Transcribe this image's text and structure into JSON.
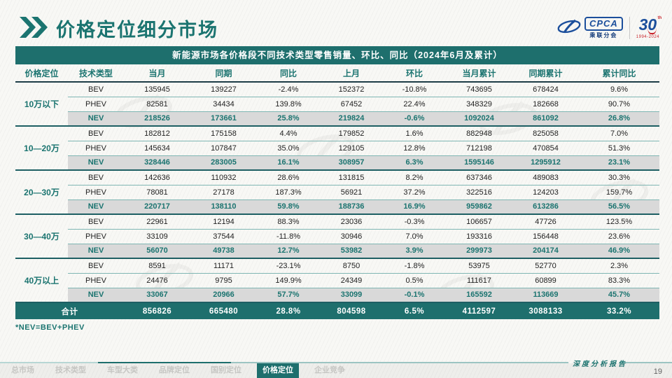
{
  "page": {
    "title": "价格定位细分市场",
    "page_number": "19",
    "report_label": "深度分析报告"
  },
  "logos": {
    "cpca_text": "CPCA",
    "cpca_sub": "乘联分会",
    "anniversary_number_left": "3",
    "anniversary_number_right": "0",
    "anniversary_th": "th",
    "anniversary_years": "1994-2024"
  },
  "table": {
    "title": "新能源市场各价格段不同技术类型零售销量、环比、同比（2024年6月及累计）",
    "columns": [
      "价格定位",
      "技术类型",
      "当月",
      "同期",
      "同比",
      "上月",
      "环比",
      "当月累计",
      "同期累计",
      "累计同比"
    ],
    "groups": [
      {
        "label": "10万以下",
        "rows": [
          {
            "type": "BEV",
            "values": [
              "135945",
              "139227",
              "-2.4%",
              "152372",
              "-10.8%",
              "743695",
              "678424",
              "9.6%"
            ]
          },
          {
            "type": "PHEV",
            "values": [
              "82581",
              "34434",
              "139.8%",
              "67452",
              "22.4%",
              "348329",
              "182668",
              "90.7%"
            ]
          },
          {
            "type": "NEV",
            "values": [
              "218526",
              "173661",
              "25.8%",
              "219824",
              "-0.6%",
              "1092024",
              "861092",
              "26.8%"
            ]
          }
        ]
      },
      {
        "label": "10—20万",
        "rows": [
          {
            "type": "BEV",
            "values": [
              "182812",
              "175158",
              "4.4%",
              "179852",
              "1.6%",
              "882948",
              "825058",
              "7.0%"
            ]
          },
          {
            "type": "PHEV",
            "values": [
              "145634",
              "107847",
              "35.0%",
              "129105",
              "12.8%",
              "712198",
              "470854",
              "51.3%"
            ]
          },
          {
            "type": "NEV",
            "values": [
              "328446",
              "283005",
              "16.1%",
              "308957",
              "6.3%",
              "1595146",
              "1295912",
              "23.1%"
            ]
          }
        ]
      },
      {
        "label": "20—30万",
        "rows": [
          {
            "type": "BEV",
            "values": [
              "142636",
              "110932",
              "28.6%",
              "131815",
              "8.2%",
              "637346",
              "489083",
              "30.3%"
            ]
          },
          {
            "type": "PHEV",
            "values": [
              "78081",
              "27178",
              "187.3%",
              "56921",
              "37.2%",
              "322516",
              "124203",
              "159.7%"
            ]
          },
          {
            "type": "NEV",
            "values": [
              "220717",
              "138110",
              "59.8%",
              "188736",
              "16.9%",
              "959862",
              "613286",
              "56.5%"
            ]
          }
        ]
      },
      {
        "label": "30—40万",
        "rows": [
          {
            "type": "BEV",
            "values": [
              "22961",
              "12194",
              "88.3%",
              "23036",
              "-0.3%",
              "106657",
              "47726",
              "123.5%"
            ]
          },
          {
            "type": "PHEV",
            "values": [
              "33109",
              "37544",
              "-11.8%",
              "30946",
              "7.0%",
              "193316",
              "156448",
              "23.6%"
            ]
          },
          {
            "type": "NEV",
            "values": [
              "56070",
              "49738",
              "12.7%",
              "53982",
              "3.9%",
              "299973",
              "204174",
              "46.9%"
            ]
          }
        ]
      },
      {
        "label": "40万以上",
        "rows": [
          {
            "type": "BEV",
            "values": [
              "8591",
              "11171",
              "-23.1%",
              "8750",
              "-1.8%",
              "53975",
              "52770",
              "2.3%"
            ]
          },
          {
            "type": "PHEV",
            "values": [
              "24476",
              "9795",
              "149.9%",
              "24349",
              "0.5%",
              "111617",
              "60899",
              "83.3%"
            ]
          },
          {
            "type": "NEV",
            "values": [
              "33067",
              "20966",
              "57.7%",
              "33099",
              "-0.1%",
              "165592",
              "113669",
              "45.7%"
            ]
          }
        ]
      }
    ],
    "total": {
      "label": "合计",
      "values": [
        "856826",
        "665480",
        "28.8%",
        "804598",
        "6.5%",
        "4112597",
        "3088133",
        "33.2%"
      ]
    },
    "footnote": "*NEV=BEV+PHEV"
  },
  "nav": {
    "items": [
      {
        "label": "总市场",
        "active": false
      },
      {
        "label": "技术类型",
        "active": false
      },
      {
        "label": "车型大类",
        "active": false
      },
      {
        "label": "品牌定位",
        "active": false
      },
      {
        "label": "国别定位",
        "active": false
      },
      {
        "label": "价格定位",
        "active": true
      },
      {
        "label": "企业竞争",
        "active": false
      }
    ]
  },
  "colors": {
    "teal": "#1E6F6D",
    "teal_text": "#1B7470",
    "nev_row_bg": "#D9D9D9",
    "logo_blue": "#1C4F9C",
    "logo_red": "#C9252C",
    "dark_rule": "#1D3C46"
  }
}
